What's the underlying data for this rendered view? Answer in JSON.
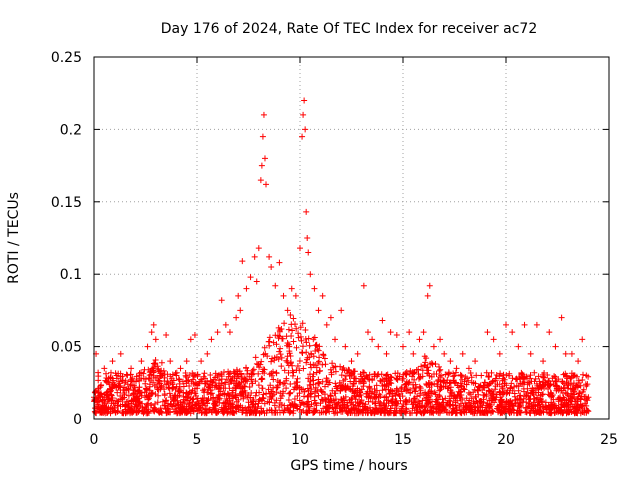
{
  "chart_data": {
    "type": "scatter",
    "title": "Day 176 of 2024, Rate Of TEC Index for receiver ac72",
    "xlabel": "GPS time / hours",
    "ylabel": "ROTI / TECUs",
    "xlim": [
      0,
      25
    ],
    "ylim": [
      0,
      0.25
    ],
    "xticks": [
      0,
      5,
      10,
      15,
      20,
      25
    ],
    "yticks": [
      0,
      0.05,
      0.1,
      0.15,
      0.2,
      0.25
    ],
    "xtick_labels": [
      "0",
      "5",
      "10",
      "15",
      "20",
      "25"
    ],
    "ytick_labels": [
      "0",
      "0.05",
      "0.1",
      "0.15",
      "0.2",
      "0.25"
    ],
    "grid": true,
    "marker": "+",
    "color": "#ff0000",
    "series": [
      {
        "name": "ROTI",
        "points": [
          [
            0.0,
            0.015
          ],
          [
            0.1,
            0.045
          ],
          [
            0.2,
            0.032
          ],
          [
            0.3,
            0.022
          ],
          [
            0.5,
            0.035
          ],
          [
            0.7,
            0.028
          ],
          [
            0.9,
            0.04
          ],
          [
            1.1,
            0.03
          ],
          [
            1.3,
            0.045
          ],
          [
            1.5,
            0.025
          ],
          [
            1.8,
            0.035
          ],
          [
            2.0,
            0.02
          ],
          [
            2.3,
            0.04
          ],
          [
            2.6,
            0.05
          ],
          [
            2.8,
            0.06
          ],
          [
            2.9,
            0.065
          ],
          [
            3.0,
            0.055
          ],
          [
            3.2,
            0.03
          ],
          [
            3.5,
            0.058
          ],
          [
            3.7,
            0.04
          ],
          [
            4.0,
            0.03
          ],
          [
            4.2,
            0.035
          ],
          [
            4.5,
            0.04
          ],
          [
            4.7,
            0.055
          ],
          [
            4.9,
            0.058
          ],
          [
            5.2,
            0.04
          ],
          [
            5.5,
            0.045
          ],
          [
            5.7,
            0.055
          ],
          [
            6.0,
            0.06
          ],
          [
            6.2,
            0.082
          ],
          [
            6.4,
            0.065
          ],
          [
            6.6,
            0.06
          ],
          [
            6.9,
            0.07
          ],
          [
            7.0,
            0.085
          ],
          [
            7.1,
            0.075
          ],
          [
            7.2,
            0.109
          ],
          [
            7.4,
            0.09
          ],
          [
            7.6,
            0.098
          ],
          [
            7.8,
            0.112
          ],
          [
            7.9,
            0.095
          ],
          [
            8.0,
            0.118
          ],
          [
            8.1,
            0.165
          ],
          [
            8.15,
            0.175
          ],
          [
            8.2,
            0.195
          ],
          [
            8.25,
            0.21
          ],
          [
            8.3,
            0.18
          ],
          [
            8.35,
            0.162
          ],
          [
            8.5,
            0.112
          ],
          [
            8.6,
            0.105
          ],
          [
            8.8,
            0.092
          ],
          [
            9.0,
            0.108
          ],
          [
            9.2,
            0.085
          ],
          [
            9.4,
            0.075
          ],
          [
            9.6,
            0.09
          ],
          [
            9.8,
            0.085
          ],
          [
            10.0,
            0.118
          ],
          [
            10.1,
            0.195
          ],
          [
            10.15,
            0.21
          ],
          [
            10.2,
            0.22
          ],
          [
            10.25,
            0.2
          ],
          [
            10.3,
            0.143
          ],
          [
            10.35,
            0.125
          ],
          [
            10.4,
            0.115
          ],
          [
            10.5,
            0.1
          ],
          [
            10.7,
            0.09
          ],
          [
            10.9,
            0.075
          ],
          [
            11.1,
            0.085
          ],
          [
            11.3,
            0.065
          ],
          [
            11.5,
            0.07
          ],
          [
            11.7,
            0.055
          ],
          [
            12.0,
            0.075
          ],
          [
            12.2,
            0.05
          ],
          [
            12.5,
            0.04
          ],
          [
            12.8,
            0.045
          ],
          [
            13.1,
            0.092
          ],
          [
            13.3,
            0.06
          ],
          [
            13.5,
            0.055
          ],
          [
            13.8,
            0.05
          ],
          [
            14.0,
            0.068
          ],
          [
            14.2,
            0.045
          ],
          [
            14.4,
            0.06
          ],
          [
            14.7,
            0.058
          ],
          [
            15.0,
            0.05
          ],
          [
            15.3,
            0.06
          ],
          [
            15.5,
            0.045
          ],
          [
            15.8,
            0.055
          ],
          [
            16.0,
            0.06
          ],
          [
            16.2,
            0.085
          ],
          [
            16.3,
            0.092
          ],
          [
            16.5,
            0.05
          ],
          [
            16.8,
            0.055
          ],
          [
            17.0,
            0.045
          ],
          [
            17.3,
            0.04
          ],
          [
            17.6,
            0.035
          ],
          [
            17.9,
            0.045
          ],
          [
            18.2,
            0.035
          ],
          [
            18.5,
            0.04
          ],
          [
            18.8,
            0.03
          ],
          [
            19.1,
            0.06
          ],
          [
            19.4,
            0.055
          ],
          [
            19.7,
            0.045
          ],
          [
            20.0,
            0.065
          ],
          [
            20.3,
            0.06
          ],
          [
            20.6,
            0.05
          ],
          [
            20.9,
            0.065
          ],
          [
            21.2,
            0.045
          ],
          [
            21.5,
            0.065
          ],
          [
            21.8,
            0.04
          ],
          [
            22.1,
            0.06
          ],
          [
            22.4,
            0.05
          ],
          [
            22.7,
            0.07
          ],
          [
            22.9,
            0.045
          ],
          [
            23.2,
            0.045
          ],
          [
            23.5,
            0.04
          ],
          [
            23.7,
            0.055
          ],
          [
            23.9,
            0.03
          ],
          [
            24.0,
            0.015
          ]
        ]
      }
    ]
  }
}
